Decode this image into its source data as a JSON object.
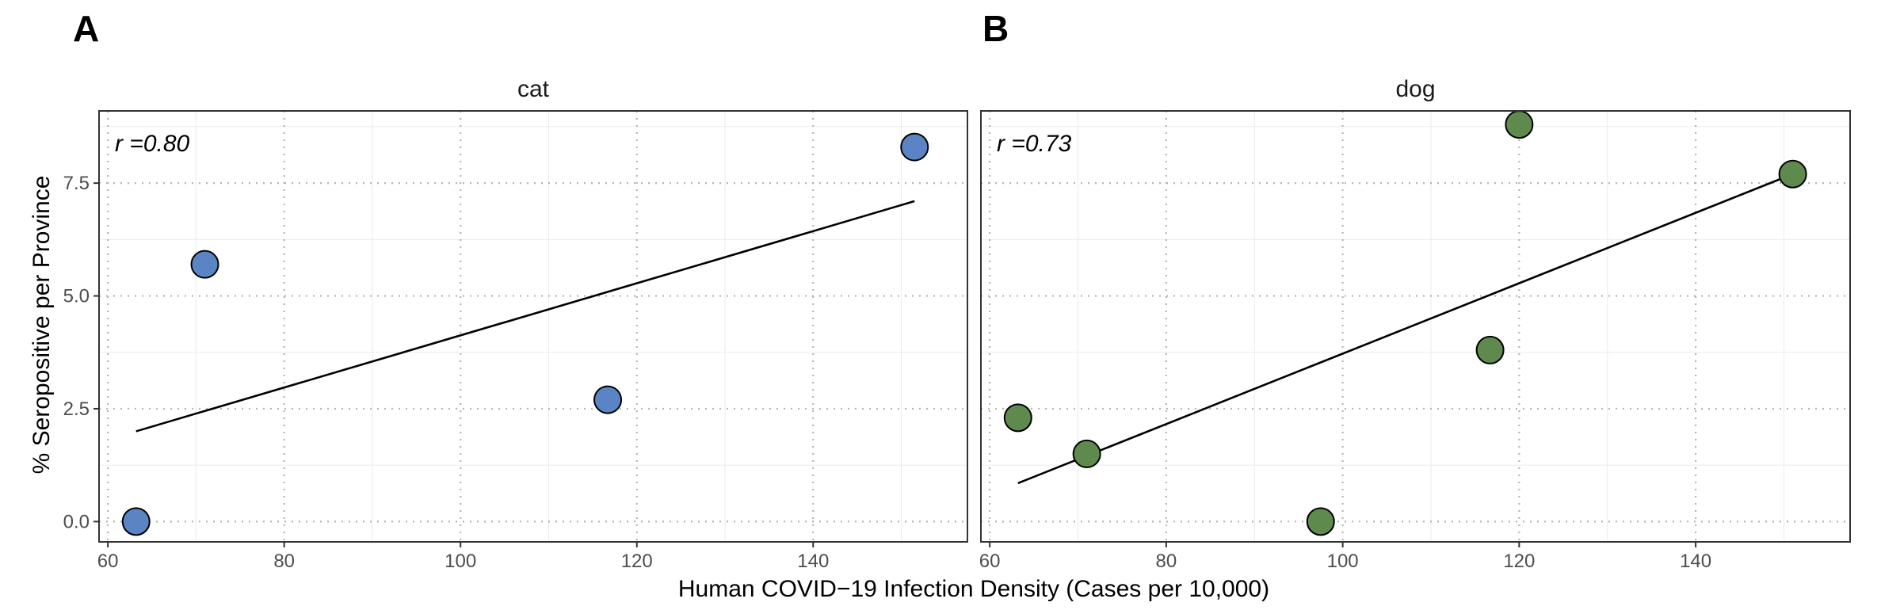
{
  "panel_letters": [
    "A",
    "B"
  ],
  "x_axis_title": "Human COVID−19 Infection Density (Cases per 10,000)",
  "y_axis_title": "% Seropositive per Province",
  "colors": {
    "cat": "#5b84c4",
    "dog": "#5f8a4e",
    "fit_line": "#000000",
    "dotted_grid": "#b5b5b5"
  },
  "chart_data": [
    {
      "type": "scatter",
      "title": "cat",
      "annotation": "r =0.80",
      "xlabel": "Human COVID−19 Infection Density (Cases per 10,000)",
      "ylabel": "% Seropositive per Province",
      "xlim": [
        59,
        157.5
      ],
      "ylim": [
        -0.45,
        9.1
      ],
      "x_ticks": [
        60,
        80,
        100,
        120,
        140
      ],
      "x_tick_labels": [
        "60",
        "80",
        "100",
        "120",
        "140"
      ],
      "y_ticks": [
        0,
        2.5,
        5,
        7.5
      ],
      "y_tick_labels": [
        "0.0",
        "2.5",
        "5.0",
        "7.5"
      ],
      "grid": true,
      "points": [
        {
          "x": 63.2,
          "y": 0.0
        },
        {
          "x": 71.0,
          "y": 5.7
        },
        {
          "x": 116.7,
          "y": 2.7
        },
        {
          "x": 151.5,
          "y": 8.3
        }
      ],
      "fit_line": [
        {
          "x": 63.2,
          "y": 2.0
        },
        {
          "x": 151.5,
          "y": 7.1
        }
      ]
    },
    {
      "type": "scatter",
      "title": "dog",
      "annotation": "r =0.73",
      "xlabel": "Human COVID−19 Infection Density (Cases per 10,000)",
      "ylabel": "% Seropositive per Province",
      "xlim": [
        59,
        157.5
      ],
      "ylim": [
        -0.45,
        9.1
      ],
      "x_ticks": [
        60,
        80,
        100,
        120,
        140
      ],
      "x_tick_labels": [
        "60",
        "80",
        "100",
        "120",
        "140"
      ],
      "y_ticks": [
        0,
        2.5,
        5,
        7.5
      ],
      "y_tick_labels": [
        "0.0",
        "2.5",
        "5.0",
        "7.5"
      ],
      "grid": true,
      "points": [
        {
          "x": 63.2,
          "y": 2.3
        },
        {
          "x": 71.0,
          "y": 1.5
        },
        {
          "x": 97.5,
          "y": 0.0
        },
        {
          "x": 116.7,
          "y": 3.8
        },
        {
          "x": 120.0,
          "y": 8.8
        },
        {
          "x": 151.0,
          "y": 7.7
        }
      ],
      "fit_line": [
        {
          "x": 63.2,
          "y": 0.85
        },
        {
          "x": 151.0,
          "y": 7.7
        }
      ]
    }
  ]
}
